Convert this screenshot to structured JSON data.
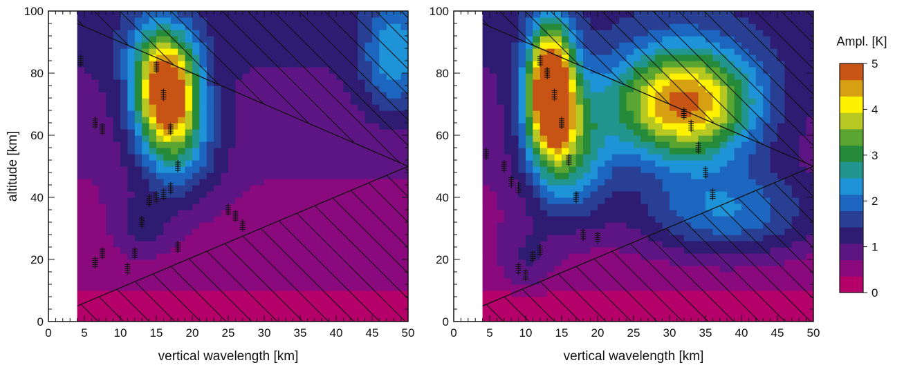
{
  "chart_data": {
    "type": "heatmap",
    "xlabel": "vertical wavelength [km]",
    "ylabel": "altitude [km]",
    "xlim": [
      0,
      50
    ],
    "ylim": [
      0,
      100
    ],
    "x_ticks": [
      "0",
      "5",
      "10",
      "15",
      "20",
      "25",
      "30",
      "35",
      "40",
      "45",
      "50"
    ],
    "y_ticks": [
      "0",
      "20",
      "40",
      "60",
      "80",
      "100"
    ],
    "colorbar": {
      "title": "Ampl. [K]",
      "min": 0,
      "max": 5,
      "ticks": [
        "0",
        "1",
        "2",
        "3",
        "4",
        "5"
      ],
      "levels_colors": [
        "#b5006a",
        "#8a0a7e",
        "#5e1584",
        "#2d1c72",
        "#283f93",
        "#1c66bf",
        "#1f93d8",
        "#21958e",
        "#258a3a",
        "#5aa532",
        "#b7c822",
        "#fff200",
        "#d6a012",
        "#c75415"
      ]
    },
    "panels": [
      {
        "name": "left",
        "data_start_x": 4,
        "hatch_regions": [
          "upper-right",
          "lower-right"
        ],
        "upper_boundary": [
          [
            4,
            96
          ],
          [
            50,
            50
          ]
        ],
        "lower_boundary": [
          [
            4,
            5
          ],
          [
            50,
            50
          ]
        ],
        "hot_spots": [
          {
            "x": 16.5,
            "y": 73,
            "amp": 4.2,
            "sx": 3.0,
            "sy": 11
          },
          {
            "x": 15.5,
            "y": 88,
            "amp": 1.2,
            "sx": 3.5,
            "sy": 8
          },
          {
            "x": 18,
            "y": 55,
            "amp": 1.4,
            "sx": 4.0,
            "sy": 12
          },
          {
            "x": 13,
            "y": 30,
            "amp": 0.6,
            "sx": 3.0,
            "sy": 8
          },
          {
            "x": 48,
            "y": 85,
            "amp": 1.4,
            "sx": 3.0,
            "sy": 12
          }
        ],
        "max_markers": [
          {
            "x": 4.5,
            "y": 84
          },
          {
            "x": 6.5,
            "y": 64
          },
          {
            "x": 7.5,
            "y": 62
          },
          {
            "x": 6.5,
            "y": 19
          },
          {
            "x": 7.5,
            "y": 22
          },
          {
            "x": 11,
            "y": 17
          },
          {
            "x": 12,
            "y": 22
          },
          {
            "x": 13,
            "y": 32
          },
          {
            "x": 14,
            "y": 39
          },
          {
            "x": 15,
            "y": 40
          },
          {
            "x": 16,
            "y": 41
          },
          {
            "x": 17,
            "y": 43
          },
          {
            "x": 15,
            "y": 82
          },
          {
            "x": 16,
            "y": 73
          },
          {
            "x": 17,
            "y": 62
          },
          {
            "x": 18,
            "y": 50
          },
          {
            "x": 18,
            "y": 24
          },
          {
            "x": 25,
            "y": 36
          },
          {
            "x": 26,
            "y": 34
          },
          {
            "x": 27,
            "y": 31
          }
        ]
      },
      {
        "name": "right",
        "data_start_x": 4,
        "hatch_regions": [
          "upper-right",
          "lower-right"
        ],
        "upper_boundary": [
          [
            4,
            96
          ],
          [
            50,
            50
          ]
        ],
        "lower_boundary": [
          [
            4,
            5
          ],
          [
            50,
            50
          ]
        ],
        "hot_spots": [
          {
            "x": 13.5,
            "y": 75,
            "amp": 4.9,
            "sx": 2.3,
            "sy": 14
          },
          {
            "x": 32,
            "y": 70,
            "amp": 3.9,
            "sx": 7.0,
            "sy": 13
          },
          {
            "x": 16,
            "y": 55,
            "amp": 2.0,
            "sx": 4.0,
            "sy": 15
          },
          {
            "x": 38,
            "y": 35,
            "amp": 1.5,
            "sx": 9.0,
            "sy": 10
          },
          {
            "x": 10,
            "y": 20,
            "amp": 0.6,
            "sx": 3.0,
            "sy": 8
          }
        ],
        "max_markers": [
          {
            "x": 4.5,
            "y": 54
          },
          {
            "x": 7,
            "y": 50
          },
          {
            "x": 8,
            "y": 45
          },
          {
            "x": 9,
            "y": 43
          },
          {
            "x": 9,
            "y": 17
          },
          {
            "x": 10,
            "y": 15
          },
          {
            "x": 11,
            "y": 21
          },
          {
            "x": 12,
            "y": 23
          },
          {
            "x": 12,
            "y": 84
          },
          {
            "x": 13,
            "y": 80
          },
          {
            "x": 14,
            "y": 73
          },
          {
            "x": 15,
            "y": 64
          },
          {
            "x": 16,
            "y": 52
          },
          {
            "x": 17,
            "y": 40
          },
          {
            "x": 18,
            "y": 28
          },
          {
            "x": 32,
            "y": 67
          },
          {
            "x": 33,
            "y": 63
          },
          {
            "x": 34,
            "y": 56
          },
          {
            "x": 35,
            "y": 48
          },
          {
            "x": 36,
            "y": 41
          },
          {
            "x": 20,
            "y": 27
          }
        ]
      }
    ]
  }
}
